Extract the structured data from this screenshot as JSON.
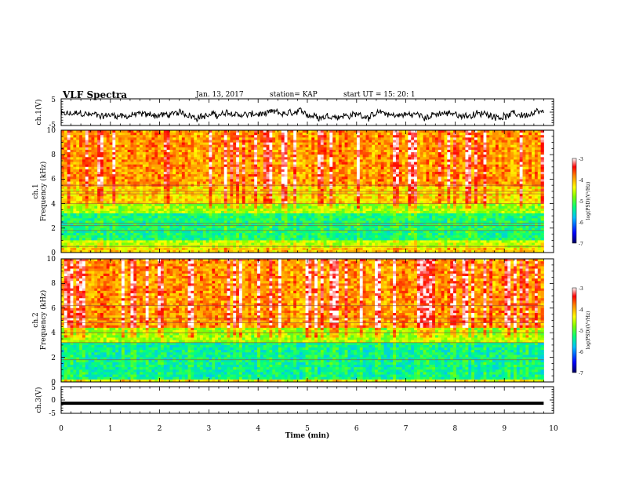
{
  "header": {
    "title": "VLF Spectra",
    "date": "Jan. 13, 2017",
    "station": "station= KAP",
    "start": "start UT = 15: 20: 1"
  },
  "colors": {
    "background": "#ffffff",
    "axis": "#000000",
    "colormap": [
      "#000060",
      "#0000ff",
      "#00c0ff",
      "#00ff80",
      "#80ff00",
      "#ffff00",
      "#ff8000",
      "#ff0000",
      "#ffffff"
    ]
  },
  "chart_data": [
    {
      "type": "line",
      "id": "ch1-waveform",
      "ylabel": "ch.1(V)",
      "yticks": [
        "5",
        "-5"
      ],
      "ylim": [
        -5,
        5
      ],
      "xlim": [
        0,
        10
      ],
      "x_end": 9.8,
      "trace": "noisy black waveform fluctuating roughly between -3 and +2 V",
      "y_level_approx": -1
    },
    {
      "type": "heatmap",
      "id": "ch1-spectrogram",
      "ylabel_line1": "ch.1",
      "ylabel_line2": "Frequency (kHz)",
      "yticks": [
        "0",
        "2",
        "4",
        "6",
        "8",
        "10"
      ],
      "ylim": [
        0,
        10
      ],
      "xlim": [
        0,
        10
      ],
      "x_end": 9.8,
      "colorbar": {
        "label": "log(PSD)(V²/Hz)",
        "ticks": [
          "-3",
          "-4",
          "-5",
          "-6",
          "-7"
        ],
        "range": [
          -7,
          -3
        ]
      },
      "bands": [
        {
          "f_from": 0.0,
          "f_to": 0.4,
          "level": -4.2
        },
        {
          "f_from": 0.4,
          "f_to": 1.0,
          "level": -4.6
        },
        {
          "f_from": 1.0,
          "f_to": 3.2,
          "level": -5.3
        },
        {
          "f_from": 3.2,
          "f_to": 4.0,
          "level": -4.7
        },
        {
          "f_from": 4.0,
          "f_to": 5.5,
          "level": -4.2
        },
        {
          "f_from": 5.5,
          "f_to": 10.0,
          "level": -3.9
        }
      ],
      "horizontal_lines_khz": [
        0.5,
        1.8,
        2.2,
        2.4,
        4.0,
        4.8,
        5.0,
        5.5
      ]
    },
    {
      "type": "heatmap",
      "id": "ch2-spectrogram",
      "ylabel_line1": "ch.2",
      "ylabel_line2": "Frequency (kHz)",
      "yticks": [
        "0",
        "2",
        "4",
        "6",
        "8",
        "10"
      ],
      "ylim": [
        0,
        10
      ],
      "xlim": [
        0,
        10
      ],
      "x_end": 9.8,
      "colorbar": {
        "label": "log(PSD)(V²/Hz)",
        "ticks": [
          "-3",
          "-4",
          "-5",
          "-6",
          "-7"
        ],
        "range": [
          -7,
          -3
        ]
      },
      "bands": [
        {
          "f_from": 0.0,
          "f_to": 0.3,
          "level": -4.4
        },
        {
          "f_from": 0.3,
          "f_to": 3.2,
          "level": -5.4
        },
        {
          "f_from": 3.2,
          "f_to": 4.5,
          "level": -4.7
        },
        {
          "f_from": 4.5,
          "f_to": 10.0,
          "level": -3.9
        }
      ],
      "horizontal_lines_khz": [
        1.8,
        3.2,
        4.0,
        4.8,
        5.2,
        6.2
      ]
    },
    {
      "type": "line",
      "id": "ch3-waveform",
      "ylabel": "ch.3(V)",
      "yticks": [
        "5",
        "0",
        "-5"
      ],
      "ylim": [
        -5,
        5
      ],
      "xlim": [
        0,
        10
      ],
      "x_end": 9.8,
      "constant_value": -1.2,
      "xlabel": "Time (min)",
      "xticks": [
        "0",
        "1",
        "2",
        "3",
        "4",
        "5",
        "6",
        "7",
        "8",
        "9",
        "10"
      ]
    }
  ]
}
